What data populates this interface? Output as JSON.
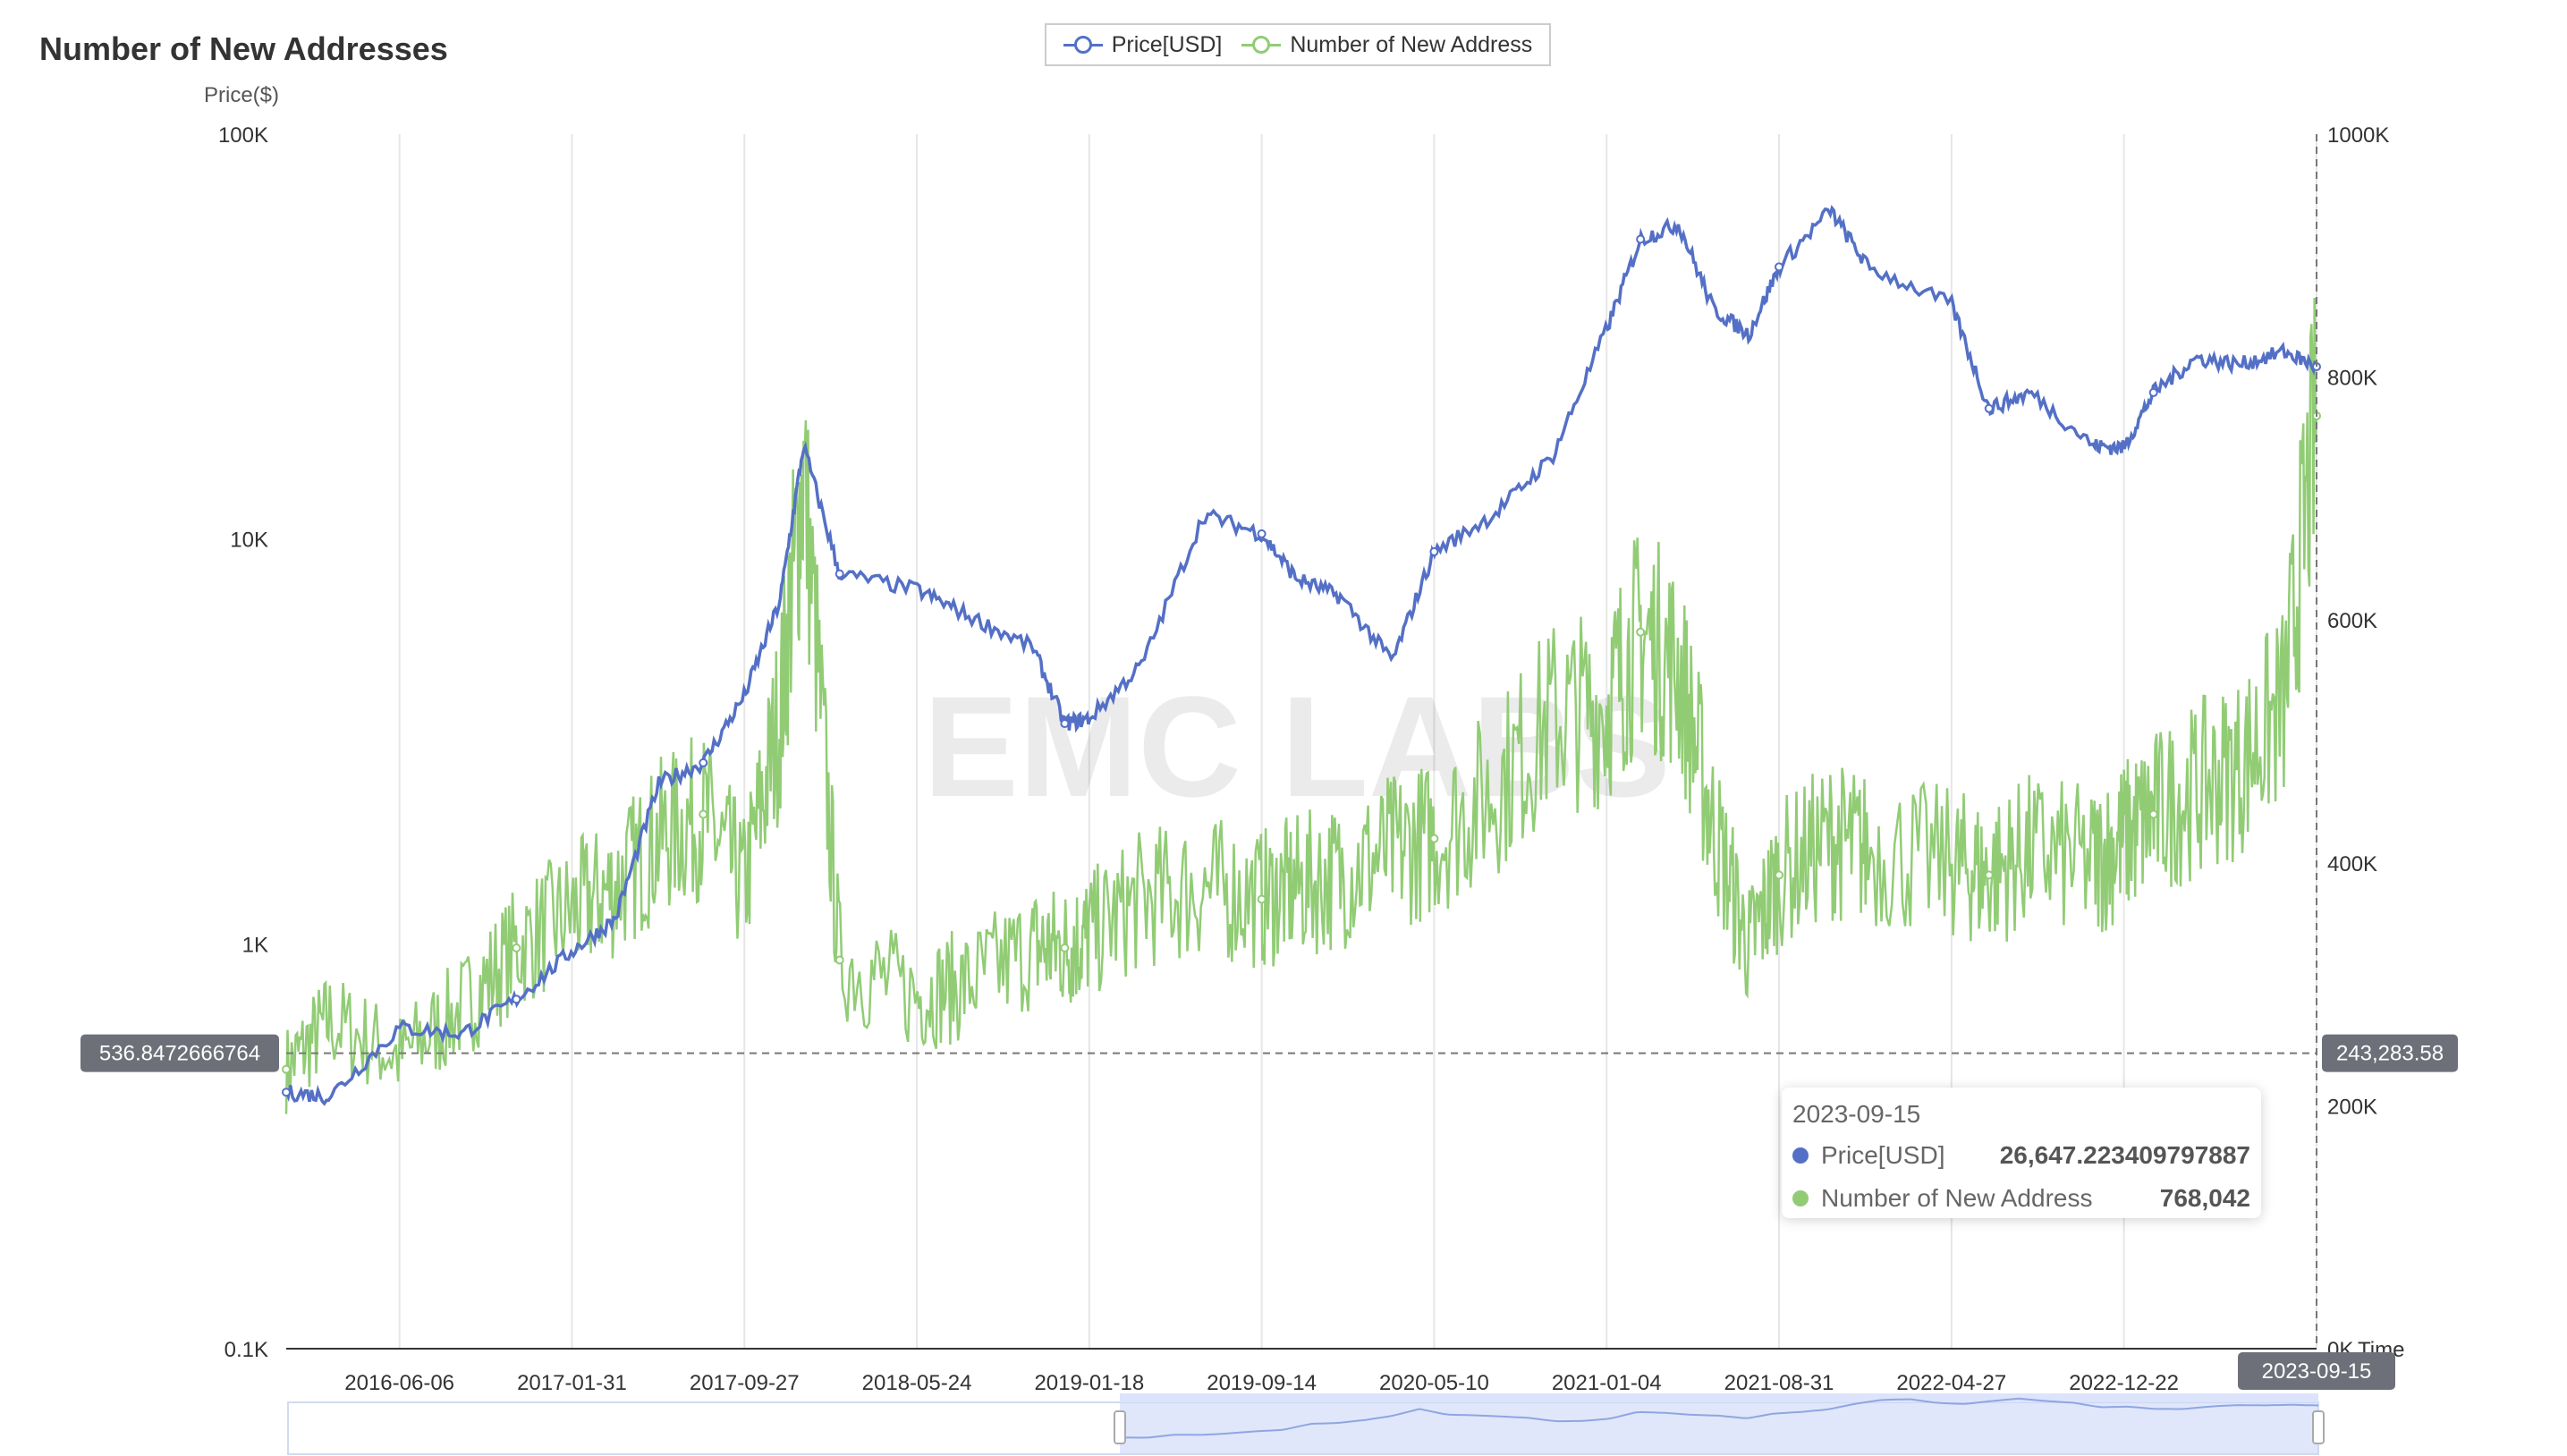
{
  "title": "Number of New Addresses",
  "legend": [
    {
      "name": "Price[USD]",
      "color": "#5470c6"
    },
    {
      "name": "Number of New Address",
      "color": "#91cc75"
    }
  ],
  "watermark": "EMC LABS",
  "tooltip": {
    "date": "2023-09-15",
    "rows": [
      {
        "name": "Price[USD]",
        "value": "26,647.223409797887",
        "color": "#5470c6"
      },
      {
        "name": "Number of New Address",
        "value": "768,042",
        "color": "#91cc75"
      }
    ]
  },
  "crosshair": {
    "left_label": "536.8472666764",
    "right_label": "243,283.58",
    "x_label": "2023-09-15"
  },
  "chart_data": {
    "type": "line",
    "title": "Number of New Addresses",
    "x": [
      "2016-01-01",
      "2016-03-01",
      "2016-06-06",
      "2016-09-01",
      "2016-11-15",
      "2017-01-31",
      "2017-04-01",
      "2017-06-01",
      "2017-08-01",
      "2017-09-27",
      "2017-11-15",
      "2017-12-18",
      "2018-02-06",
      "2018-05-24",
      "2018-08-01",
      "2018-11-01",
      "2018-12-15",
      "2019-01-18",
      "2019-04-01",
      "2019-06-26",
      "2019-09-14",
      "2019-11-01",
      "2020-01-01",
      "2020-03-13",
      "2020-05-10",
      "2020-08-01",
      "2020-10-21",
      "2021-01-04",
      "2021-02-20",
      "2021-04-14",
      "2021-06-01",
      "2021-07-20",
      "2021-08-31",
      "2021-11-10",
      "2022-01-01",
      "2022-04-27",
      "2022-06-18",
      "2022-08-15",
      "2022-11-10",
      "2022-12-22",
      "2023-02-01",
      "2023-04-01",
      "2023-06-01",
      "2023-08-01",
      "2023-09-15"
    ],
    "series": [
      {
        "name": "Price[USD]",
        "axis": "left",
        "scale": "log",
        "values": [
          430,
          420,
          620,
          600,
          730,
          960,
          1150,
          2500,
          2800,
          4100,
          7000,
          17000,
          8200,
          7500,
          6500,
          5400,
          3500,
          3600,
          4900,
          11500,
          10300,
          8000,
          7200,
          5000,
          9300,
          11500,
          16000,
          33000,
          55000,
          60000,
          37000,
          32000,
          47000,
          65000,
          47000,
          38000,
          21000,
          23000,
          17000,
          16800,
          23000,
          28000,
          27000,
          29000,
          26647
        ]
      },
      {
        "name": "Number of New Address",
        "axis": "right",
        "scale": "linear",
        "values": [
          230000,
          270000,
          240000,
          280000,
          330000,
          360000,
          380000,
          420000,
          440000,
          380000,
          520000,
          720000,
          320000,
          290000,
          300000,
          330000,
          330000,
          340000,
          370000,
          380000,
          370000,
          380000,
          390000,
          410000,
          420000,
          460000,
          520000,
          530000,
          590000,
          560000,
          430000,
          330000,
          390000,
          420000,
          410000,
          400000,
          390000,
          410000,
          400000,
          420000,
          440000,
          460000,
          480000,
          530000,
          768042
        ]
      }
    ],
    "x_ticks": [
      "2016-06-06",
      "2017-01-31",
      "2017-09-27",
      "2018-05-24",
      "2019-01-18",
      "2019-09-14",
      "2020-05-10",
      "2021-01-04",
      "2021-08-31",
      "2022-04-27",
      "2022-12-22",
      "2023-09-15"
    ],
    "y_left": {
      "label": "Price($)",
      "ticks": [
        "0.1K",
        "1K",
        "10K",
        "100K"
      ],
      "min": 100,
      "max": 100000
    },
    "y_right": {
      "ticks": [
        "0K",
        "200K",
        "400K",
        "600K",
        "800K",
        "1000K"
      ],
      "min": 0,
      "max": 1000000,
      "label": "Time"
    },
    "grid": "vertical"
  }
}
